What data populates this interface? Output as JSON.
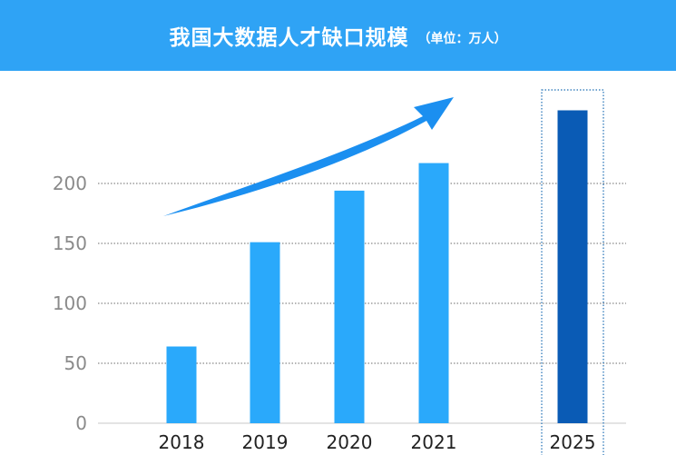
{
  "header": {
    "title": "我国大数据人才缺口规模",
    "unit": "（单位：万人）"
  },
  "colors": {
    "header_bg": "#2fa3f5",
    "bar": "#2aa9fb",
    "bar_highlight": "#0a5bb5",
    "grid": "#6b6b6b",
    "tick_text": "#8a8a8a",
    "arrow": "#1b8ff0"
  },
  "chart_data": {
    "type": "bar",
    "categories": [
      "2018",
      "2019",
      "2020",
      "2021",
      "2025"
    ],
    "values": [
      64,
      151,
      194,
      217,
      261
    ],
    "highlight_index": 4,
    "yticks": [
      0,
      50,
      100,
      150,
      200
    ],
    "ylim": [
      0,
      265
    ],
    "grid": true,
    "trend_arrow": "up"
  }
}
